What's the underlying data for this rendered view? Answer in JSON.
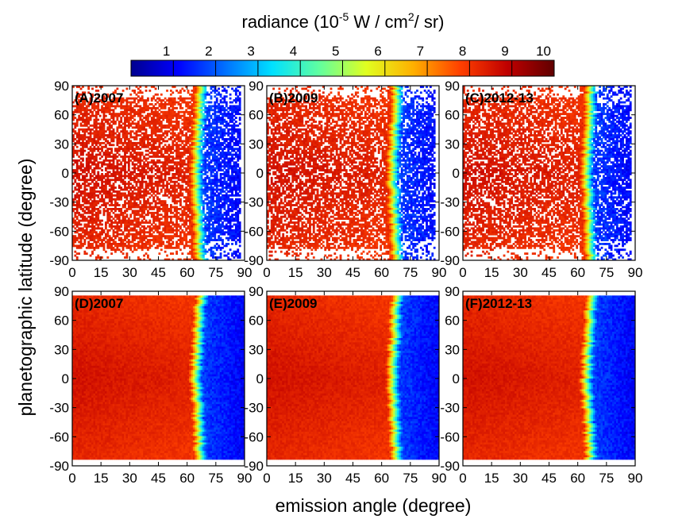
{
  "colorbar": {
    "title_base": "radiance  (10",
    "title_exp": "-5",
    "title_mid": " W / cm",
    "title_exp2": "2",
    "title_end": "/ sr)",
    "min": 0,
    "max": 10,
    "ticks": [
      1,
      2,
      3,
      4,
      5,
      6,
      7,
      8,
      9,
      10
    ],
    "stops": [
      "#00008f",
      "#0000ff",
      "#0070ff",
      "#00e0ff",
      "#60ffa0",
      "#e0ff20",
      "#ffb000",
      "#ff4000",
      "#c00000",
      "#600000"
    ]
  },
  "ylabel": "planetographic latitude (degree)",
  "xlabel": "emission angle (degree)",
  "x_ticks": [
    0,
    15,
    30,
    45,
    60,
    75,
    90
  ],
  "y_ticks": [
    90,
    60,
    30,
    0,
    -30,
    -60,
    -90
  ],
  "chart_data": [
    {
      "type": "heatmap",
      "label": "(A)2007",
      "kind": "observed",
      "limb_angle": 64,
      "xlim": [
        0,
        90
      ],
      "ylim": [
        -90,
        90
      ]
    },
    {
      "type": "heatmap",
      "label": "(B)2009",
      "kind": "observed",
      "limb_angle": 65,
      "xlim": [
        0,
        90
      ],
      "ylim": [
        -90,
        90
      ]
    },
    {
      "type": "heatmap",
      "label": "(C)2012-13",
      "kind": "observed",
      "limb_angle": 64,
      "xlim": [
        0,
        90
      ],
      "ylim": [
        -90,
        90
      ]
    },
    {
      "type": "heatmap",
      "label": "(D)2007",
      "kind": "model",
      "limb_angle": 64,
      "xlim": [
        0,
        90
      ],
      "ylim": [
        -90,
        90
      ]
    },
    {
      "type": "heatmap",
      "label": "(E)2009",
      "kind": "model",
      "limb_angle": 65,
      "xlim": [
        0,
        90
      ],
      "ylim": [
        -90,
        90
      ]
    },
    {
      "type": "heatmap",
      "label": "(F)2012-13",
      "kind": "model",
      "limb_angle": 64,
      "xlim": [
        0,
        90
      ],
      "ylim": [
        -90,
        90
      ]
    }
  ]
}
